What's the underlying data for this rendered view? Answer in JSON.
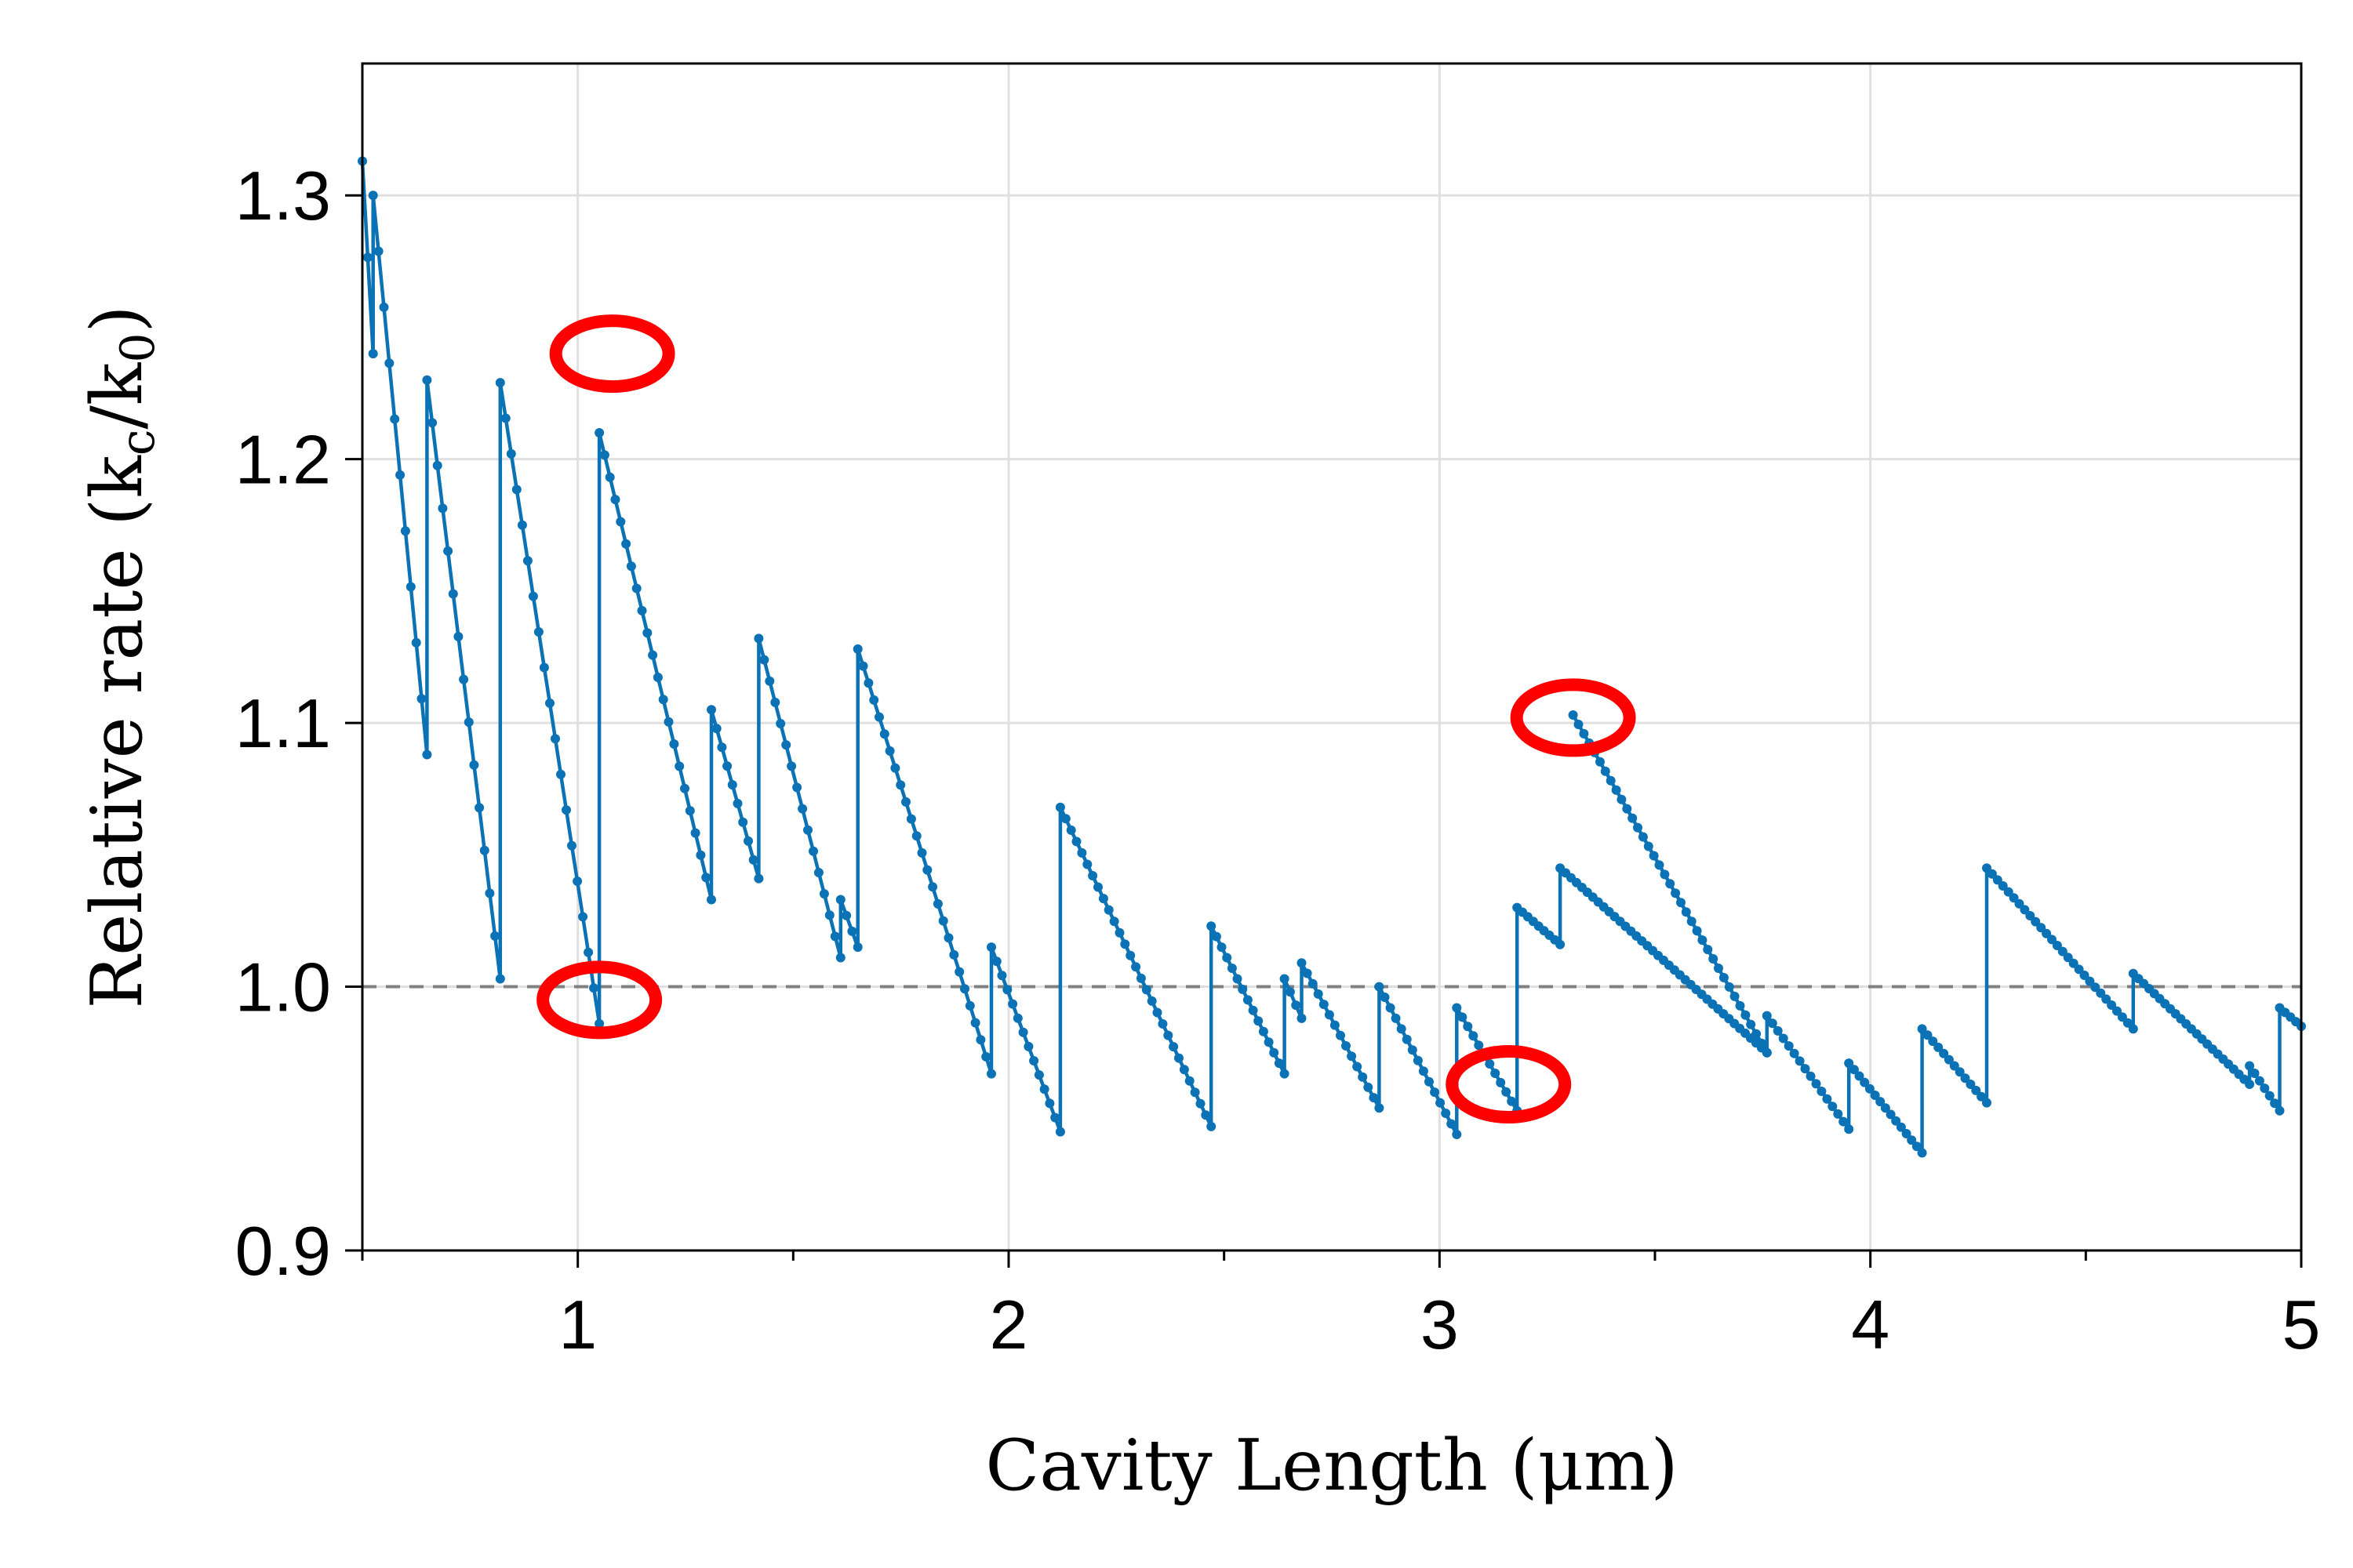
{
  "chart_data": {
    "type": "line",
    "xlabel": "Cavity Length (μm)",
    "ylabel": "Relative rate (k",
    "ylabel_sub_c": "c",
    "ylabel_mid": "/k",
    "ylabel_sub_0": "0",
    "ylabel_end": ")",
    "xlim": [
      0.5,
      5.0
    ],
    "ylim": [
      0.9,
      1.35
    ],
    "xticks": [
      1,
      2,
      3,
      4,
      5
    ],
    "xtick_labels": [
      "1",
      "2",
      "3",
      "4",
      "5"
    ],
    "xminor_ticks": [
      0.5,
      1.5,
      2.5,
      3.5,
      4.5
    ],
    "yticks": [
      0.9,
      1.0,
      1.1,
      1.2,
      1.3
    ],
    "ytick_labels": [
      "0.9",
      "1.0",
      "1.1",
      "1.2",
      "1.3"
    ],
    "grid": true,
    "reference_line": {
      "y": 1.0,
      "style": "dashed",
      "color": "#808080"
    },
    "series_color": "#0b72b5",
    "marker_color": "#0b72b5",
    "annotation_color": "#ff0000",
    "series": [
      {
        "segments": [
          {
            "x0": 0.5,
            "x1": 0.525,
            "y0": 1.313,
            "y1": 1.24
          },
          {
            "x0": 0.525,
            "x1": 0.65,
            "y0": 1.3,
            "y1": 1.088
          },
          {
            "x0": 0.65,
            "x1": 0.82,
            "y0": 1.23,
            "y1": 1.003
          },
          {
            "x0": 0.82,
            "x1": 1.05,
            "y0": 1.229,
            "y1": 0.986
          },
          {
            "x0": 1.05,
            "x1": 1.31,
            "y0": 1.21,
            "y1": 1.033
          },
          {
            "x0": 1.31,
            "x1": 1.42,
            "y0": 1.105,
            "y1": 1.041
          },
          {
            "x0": 1.42,
            "x1": 1.61,
            "y0": 1.132,
            "y1": 1.011
          },
          {
            "x0": 1.61,
            "x1": 1.65,
            "y0": 1.033,
            "y1": 1.015
          },
          {
            "x0": 1.65,
            "x1": 1.96,
            "y0": 1.128,
            "y1": 0.967
          },
          {
            "x0": 1.96,
            "x1": 2.12,
            "y0": 1.015,
            "y1": 0.945
          },
          {
            "x0": 2.12,
            "x1": 2.47,
            "y0": 1.068,
            "y1": 0.947
          },
          {
            "x0": 2.47,
            "x1": 2.64,
            "y0": 1.023,
            "y1": 0.967
          },
          {
            "x0": 2.64,
            "x1": 2.68,
            "y0": 1.003,
            "y1": 0.988
          },
          {
            "x0": 2.68,
            "x1": 2.86,
            "y0": 1.009,
            "y1": 0.954
          },
          {
            "x0": 2.86,
            "x1": 3.04,
            "y0": 1.0,
            "y1": 0.944
          },
          {
            "x0": 3.04,
            "x1": 3.18,
            "y0": 0.992,
            "y1": 0.953
          },
          {
            "x0": 3.18,
            "x1": 3.28,
            "y0": 1.03,
            "y1": 1.016
          },
          {
            "x0": 3.28,
            "x1": 3.76,
            "y0": 1.045,
            "y1": 0.975
          },
          {
            "x0": 3.31,
            "x1": 3.76,
            "y0": 1.103,
            "y1": 0.975
          },
          {
            "x0": 3.76,
            "x1": 3.95,
            "y0": 0.989,
            "y1": 0.946
          },
          {
            "x0": 3.95,
            "x1": 4.12,
            "y0": 0.971,
            "y1": 0.937
          },
          {
            "x0": 4.12,
            "x1": 4.27,
            "y0": 0.984,
            "y1": 0.956
          },
          {
            "x0": 4.27,
            "x1": 4.61,
            "y0": 1.045,
            "y1": 0.984
          },
          {
            "x0": 4.61,
            "x1": 4.88,
            "y0": 1.005,
            "y1": 0.963
          },
          {
            "x0": 4.88,
            "x1": 4.95,
            "y0": 0.97,
            "y1": 0.953
          },
          {
            "x0": 4.95,
            "x1": 5.0,
            "y0": 0.992,
            "y1": 0.985
          }
        ]
      }
    ],
    "annotations": [
      {
        "shape": "ellipse",
        "x": 1.08,
        "y": 1.24
      },
      {
        "shape": "ellipse",
        "x": 1.05,
        "y": 0.995
      },
      {
        "shape": "ellipse",
        "x": 3.16,
        "y": 0.963
      },
      {
        "shape": "ellipse",
        "x": 3.31,
        "y": 1.102
      }
    ]
  }
}
